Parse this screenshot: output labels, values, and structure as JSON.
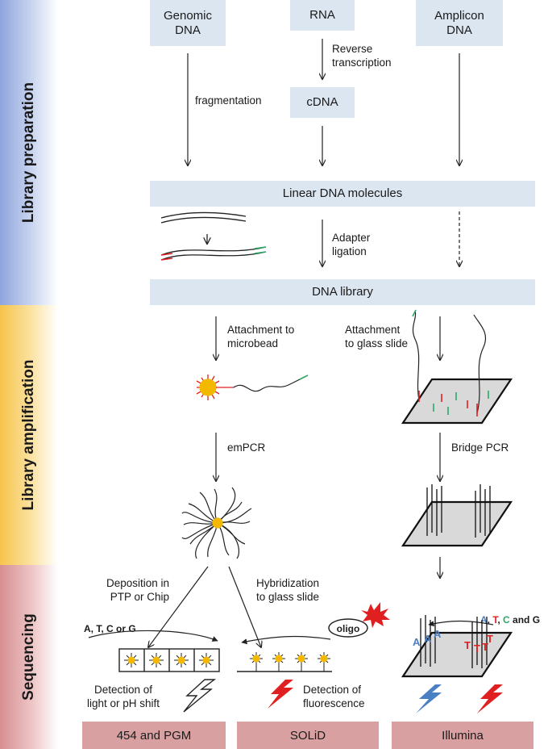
{
  "stages": {
    "library_preparation": "Library preparation",
    "library_amplification": "Library amplification",
    "sequencing": "Sequencing"
  },
  "sources": {
    "genomic": "Genomic\nDNA",
    "rna": "RNA",
    "amplicon": "Amplicon\nDNA",
    "cdna": "cDNA"
  },
  "steps": {
    "reverse_transcription": "Reverse\ntranscription",
    "fragmentation": "fragmentation",
    "linear_dna": "Linear DNA molecules",
    "adapter_ligation": "Adapter\nligation",
    "dna_library": "DNA library",
    "attach_microbead": "Attachment to\nmicrobead",
    "attach_glass": "Attachment\nto glass slide",
    "empcr": "emPCR",
    "bridge_pcr": "Bridge PCR",
    "deposition": "Deposition in\nPTP or Chip",
    "hybridization": "Hybridization\nto glass slide",
    "atcg_or": "A, T, C or G",
    "oligo": "oligo",
    "detect_light": "Detection of\nlight or pH shift",
    "detect_fluor": "Detection of\nfluorescence"
  },
  "illumina_bases": {
    "a": "A",
    "sep1": ", ",
    "t": "T",
    "sep2": ", ",
    "c": "C",
    "and_g": " and G"
  },
  "bases_on_slide": {
    "blue": "A",
    "red": "T"
  },
  "platforms": {
    "p454": "454 and PGM",
    "solid": "SOLiD",
    "illumina": "Illumina"
  },
  "colors": {
    "box": "#dce6f1",
    "platform": "#d9a0a1",
    "library_band": "#8ea4dc",
    "amplification_band": "#f6c44b",
    "sequencing_band": "#d68f91",
    "bead": "#f5b800",
    "red": "#e02020",
    "green": "#2aa868",
    "blue": "#4a7fc4"
  }
}
